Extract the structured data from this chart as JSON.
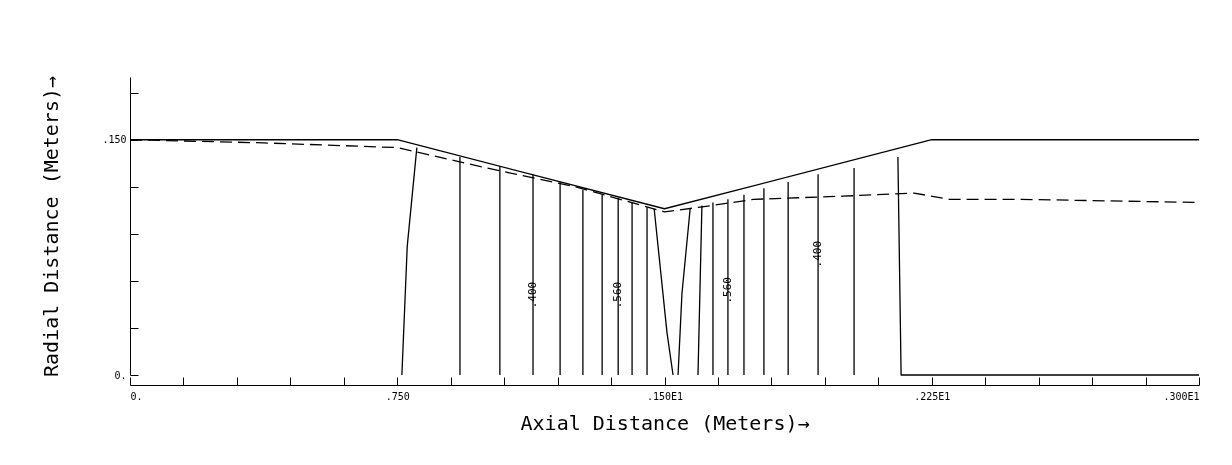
{
  "chart_data": {
    "type": "line",
    "xlabel": "Axial Distance (Meters)→",
    "ylabel": "Radial Distance (Meters)→",
    "xlim": [
      0,
      3.0
    ],
    "ylim": [
      0,
      0.19
    ],
    "xticks": [
      {
        "value": 0,
        "label": "0."
      },
      {
        "value": 0.15,
        "label": null
      },
      {
        "value": 0.3,
        "label": null
      },
      {
        "value": 0.45,
        "label": null
      },
      {
        "value": 0.6,
        "label": null
      },
      {
        "value": 0.75,
        "label": ".750"
      },
      {
        "value": 0.9,
        "label": null
      },
      {
        "value": 1.05,
        "label": null
      },
      {
        "value": 1.2,
        "label": null
      },
      {
        "value": 1.35,
        "label": null
      },
      {
        "value": 1.5,
        "label": ".150E1"
      },
      {
        "value": 1.65,
        "label": null
      },
      {
        "value": 1.8,
        "label": null
      },
      {
        "value": 1.95,
        "label": null
      },
      {
        "value": 2.1,
        "label": null
      },
      {
        "value": 2.25,
        "label": ".225E1"
      },
      {
        "value": 2.4,
        "label": null
      },
      {
        "value": 2.55,
        "label": null
      },
      {
        "value": 2.7,
        "label": null
      },
      {
        "value": 2.85,
        "label": null
      },
      {
        "value": 3.0,
        "label": ".300E1"
      }
    ],
    "yticks": [
      {
        "value": 0,
        "label": "0."
      },
      {
        "value": 0.03,
        "label": null
      },
      {
        "value": 0.06,
        "label": null
      },
      {
        "value": 0.09,
        "label": null
      },
      {
        "value": 0.12,
        "label": null
      },
      {
        "value": 0.15,
        "label": ".150"
      },
      {
        "value": 0.18,
        "label": null
      }
    ],
    "grid": false,
    "legend": false,
    "marker": "none",
    "series": [
      {
        "color": "#000000",
        "line_style": "solid",
        "x": [
          0,
          0.75,
          1.5,
          2.25,
          3.0
        ],
        "values": [
          0.15,
          0.15,
          0.106,
          0.15,
          0.15
        ]
      },
      {
        "color": "#000000",
        "line_style": "dashed",
        "x": [
          0,
          0.375,
          0.75,
          1.0,
          1.25,
          1.5,
          1.6,
          1.75,
          2.0,
          2.2,
          2.3,
          2.5,
          3.0
        ],
        "values": [
          0.15,
          0.148,
          0.145,
          0.132,
          0.12,
          0.104,
          0.107,
          0.112,
          0.114,
          0.116,
          0.112,
          0.112,
          0.11
        ]
      },
      {
        "color": "#000000",
        "line_style": "solid",
        "x": [
          0.805,
          0.778,
          0.763
        ],
        "values": [
          0.145,
          0.082,
          0
        ]
      },
      {
        "color": "#000000",
        "line_style": "solid",
        "x": [
          0.926,
          0.926
        ],
        "values": [
          0.139,
          0
        ]
      },
      {
        "color": "#000000",
        "line_style": "solid",
        "x": [
          1.038,
          1.038
        ],
        "values": [
          0.133,
          0
        ]
      },
      {
        "color": "#000000",
        "line_style": "solid",
        "x": [
          1.131,
          1.131
        ],
        "values": [
          0.128,
          0
        ]
      },
      {
        "color": "#000000",
        "line_style": "solid",
        "x": [
          1.207,
          1.207
        ],
        "values": [
          0.123,
          0
        ]
      },
      {
        "color": "#000000",
        "line_style": "solid",
        "x": [
          1.271,
          1.271
        ],
        "values": [
          0.118,
          0
        ]
      },
      {
        "color": "#000000",
        "line_style": "solid",
        "x": [
          1.325,
          1.325
        ],
        "values": [
          0.115,
          0
        ]
      },
      {
        "color": "#000000",
        "line_style": "solid",
        "x": [
          1.37,
          1.37
        ],
        "values": [
          0.113,
          0
        ]
      },
      {
        "color": "#000000",
        "line_style": "solid",
        "x": [
          1.409,
          1.409
        ],
        "values": [
          0.11,
          0
        ]
      },
      {
        "color": "#000000",
        "line_style": "solid",
        "x": [
          1.451,
          1.451
        ],
        "values": [
          0.107,
          0
        ]
      },
      {
        "color": "#000000",
        "line_style": "solid",
        "x": [
          1.471,
          1.507,
          1.524
        ],
        "values": [
          0.106,
          0.027,
          0
        ]
      },
      {
        "color": "#000000",
        "line_style": "solid",
        "x": [
          1.572,
          1.549,
          1.538
        ],
        "values": [
          0.106,
          0.052,
          0
        ]
      },
      {
        "color": "#000000",
        "line_style": "solid",
        "x": [
          1.605,
          1.594
        ],
        "values": [
          0.108,
          0
        ]
      },
      {
        "color": "#000000",
        "line_style": "solid",
        "x": [
          1.636,
          1.636
        ],
        "values": [
          0.11,
          0
        ]
      },
      {
        "color": "#000000",
        "line_style": "solid",
        "x": [
          1.678,
          1.678
        ],
        "values": [
          0.112,
          0
        ]
      },
      {
        "color": "#000000",
        "line_style": "solid",
        "x": [
          1.723,
          1.723
        ],
        "values": [
          0.115,
          0
        ]
      },
      {
        "color": "#000000",
        "line_style": "solid",
        "x": [
          1.779,
          1.779
        ],
        "values": [
          0.119,
          0
        ]
      },
      {
        "color": "#000000",
        "line_style": "solid",
        "x": [
          1.847,
          1.847
        ],
        "values": [
          0.123,
          0
        ]
      },
      {
        "color": "#000000",
        "line_style": "solid",
        "x": [
          1.931,
          1.931
        ],
        "values": [
          0.128,
          0
        ]
      },
      {
        "color": "#000000",
        "line_style": "solid",
        "x": [
          2.032,
          2.032
        ],
        "values": [
          0.132,
          0
        ]
      },
      {
        "color": "#000000",
        "line_style": "solid",
        "x": [
          2.155,
          2.164,
          3.0
        ],
        "values": [
          0.139,
          0,
          0
        ]
      }
    ],
    "annotations": [
      {
        "text": ".400",
        "x": 1.131,
        "y": 0.051
      },
      {
        "text": ".560",
        "x": 1.37,
        "y": 0.051
      },
      {
        "text": ".560",
        "x": 1.678,
        "y": 0.054
      },
      {
        "text": ".400",
        "x": 1.931,
        "y": 0.077
      }
    ]
  }
}
